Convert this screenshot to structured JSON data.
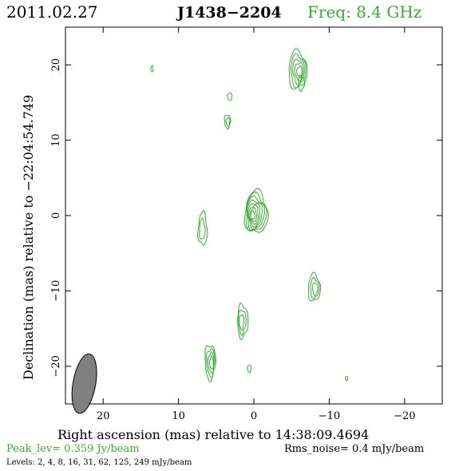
{
  "header": {
    "date": "2011.02.27",
    "source": "J1438−2204",
    "freq": "Freq:  8.4  GHz"
  },
  "footer": {
    "peak": "Peak_lev=   0.359  Jy/beam",
    "rms": "Rms_noise=    0.4  mJy/beam",
    "levels": "Levels:    2,    4,    8,   16,   31,   62,  125,  249  mJy/beam"
  },
  "colors": {
    "contour": "#3aaa35",
    "beam": "#808080",
    "freq": "#3aaa35",
    "peak": "#3aaa35"
  },
  "chart_data": {
    "type": "contour",
    "xlabel": "Right ascension (mas) relative to 14:38:09.4694",
    "ylabel": "Declination (mas) relative to −22:04:54.749",
    "xlim": [
      25,
      -25
    ],
    "ylim": [
      -25,
      25
    ],
    "xticks": [
      20,
      10,
      0,
      -10,
      -20
    ],
    "xtick_labels": [
      "20",
      "10",
      "0",
      "−10",
      "−20"
    ],
    "yticks": [
      20,
      10,
      0,
      -10,
      -20
    ],
    "ytick_labels": [
      "20",
      "10",
      "0",
      "−10",
      "−20"
    ],
    "beam": {
      "center": [
        22.5,
        -22.3
      ],
      "major_mas": 4.0,
      "minor_mas": 1.5,
      "pa_deg": 10
    },
    "components": [
      {
        "name": "core",
        "center": [
          -0.3,
          0.4
        ],
        "rx": 1.5,
        "ry": 2.8,
        "levels": 8
      },
      {
        "name": "north-knot",
        "center": [
          -5.8,
          19.3
        ],
        "rx": 1.2,
        "ry": 2.5,
        "levels": 5
      },
      {
        "name": "north-tail",
        "center": [
          -6.3,
          17.6
        ],
        "rx": 0.4,
        "ry": 1.0,
        "levels": 1
      },
      {
        "name": "upper-mid-a",
        "center": [
          3.5,
          12.5
        ],
        "rx": 0.4,
        "ry": 0.9,
        "levels": 2
      },
      {
        "name": "upper-mid-b",
        "center": [
          3.2,
          15.8
        ],
        "rx": 0.3,
        "ry": 0.5,
        "levels": 1
      },
      {
        "name": "far-left-dot",
        "center": [
          13.5,
          19.5
        ],
        "rx": 0.15,
        "ry": 0.4,
        "levels": 1
      },
      {
        "name": "left-knot",
        "center": [
          6.8,
          -1.8
        ],
        "rx": 0.6,
        "ry": 2.2,
        "levels": 2
      },
      {
        "name": "right-knot",
        "center": [
          -8.0,
          -9.6
        ],
        "rx": 0.8,
        "ry": 1.8,
        "levels": 3
      },
      {
        "name": "lower-mid",
        "center": [
          1.5,
          -14.0
        ],
        "rx": 0.7,
        "ry": 2.2,
        "levels": 3
      },
      {
        "name": "lower-left",
        "center": [
          5.8,
          -19.4
        ],
        "rx": 0.7,
        "ry": 2.3,
        "levels": 4
      },
      {
        "name": "lower-dot",
        "center": [
          0.6,
          -20.3
        ],
        "rx": 0.25,
        "ry": 0.5,
        "levels": 1
      },
      {
        "name": "far-right-dot",
        "center": [
          -12.3,
          -21.6
        ],
        "rx": 0.15,
        "ry": 0.25,
        "levels": 1
      }
    ]
  }
}
